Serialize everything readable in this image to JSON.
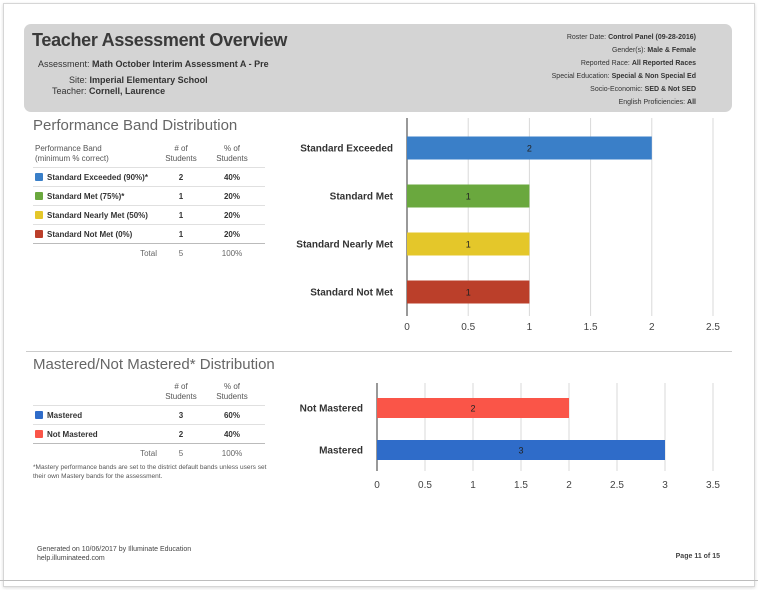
{
  "header": {
    "title": "Teacher Assessment Overview",
    "assessment_label": "Assessment:",
    "assessment_value": "Math October Interim Assessment A - Pre",
    "site_label": "Site:",
    "site_value": "Imperial Elementary School",
    "teacher_label": "Teacher:",
    "teacher_value": "Cornell, Laurence",
    "meta": [
      {
        "label": "Roster Date:",
        "value": "Control Panel (09-28-2016)"
      },
      {
        "label": "Gender(s):",
        "value": "Male & Female"
      },
      {
        "label": "Reported Race:",
        "value": "All Reported Races"
      },
      {
        "label": "Special Education:",
        "value": "Special & Non Special Ed"
      },
      {
        "label": "Socio-Economic:",
        "value": "SED & Not SED"
      },
      {
        "label": "English Proficiencies:",
        "value": "All"
      }
    ]
  },
  "performance": {
    "section_title": "Performance Band Distribution",
    "col_band_line1": "Performance Band",
    "col_band_line2": "(minimum % correct)",
    "col_num_line1": "# of",
    "col_num_line2": "Students",
    "col_pct_line1": "% of",
    "col_pct_line2": "Students",
    "rows": [
      {
        "label": "Standard Exceeded (90%)*",
        "count": "2",
        "pct": "40%"
      },
      {
        "label": "Standard Met (75%)*",
        "count": "1",
        "pct": "20%"
      },
      {
        "label": "Standard Nearly Met (50%)",
        "count": "1",
        "pct": "20%"
      },
      {
        "label": "Standard Not Met (0%)",
        "count": "1",
        "pct": "20%"
      }
    ],
    "total_label": "Total",
    "total_count": "5",
    "total_pct": "100%"
  },
  "mastery": {
    "section_title": "Mastered/Not Mastered* Distribution",
    "col_num_line1": "# of",
    "col_num_line2": "Students",
    "col_pct_line1": "% of",
    "col_pct_line2": "Students",
    "rows": [
      {
        "label": "Mastered",
        "count": "3",
        "pct": "60%"
      },
      {
        "label": "Not Mastered",
        "count": "2",
        "pct": "40%"
      }
    ],
    "total_label": "Total",
    "total_count": "5",
    "total_pct": "100%",
    "footnote": "*Mastery performance bands are set to the district default bands unless users set their own Mastery bands for the assessment."
  },
  "colors": {
    "exceeded": "#3a7fc8",
    "met": "#6aa83e",
    "nearly_met": "#e4c72a",
    "not_met": "#bb3f2a",
    "mastered": "#2f6cc9",
    "not_mastered": "#fa5548"
  },
  "chart_data": [
    {
      "type": "bar",
      "orientation": "horizontal",
      "title": "Performance Band Distribution",
      "categories": [
        "Standard Exceeded",
        "Standard Met",
        "Standard Nearly Met",
        "Standard Not Met"
      ],
      "values": [
        2,
        1,
        1,
        1
      ],
      "colors": [
        "#3a7fc8",
        "#6aa83e",
        "#e4c72a",
        "#bb3f2a"
      ],
      "xlim": [
        0,
        2.5
      ],
      "xticks": [
        0,
        0.5,
        1,
        1.5,
        2,
        2.5
      ],
      "tick_labels": [
        "0",
        "0.5",
        "1",
        "1.5",
        "2",
        "2.5"
      ],
      "grid": true
    },
    {
      "type": "bar",
      "orientation": "horizontal",
      "title": "Mastered/Not Mastered* Distribution",
      "categories": [
        "Not Mastered",
        "Mastered"
      ],
      "values": [
        2,
        3
      ],
      "colors": [
        "#fa5548",
        "#2f6cc9"
      ],
      "xlim": [
        0,
        3.5
      ],
      "xticks": [
        0,
        0.5,
        1,
        1.5,
        2,
        2.5,
        3,
        3.5
      ],
      "tick_labels": [
        "0",
        "0.5",
        "1",
        "1.5",
        "2",
        "2.5",
        "3",
        "3.5"
      ],
      "grid": true
    }
  ],
  "footer": {
    "generated": "Generated on 10/06/2017 by Illuminate Education",
    "site": "help.illuminateed.com",
    "page": "Page 11 of 15"
  }
}
